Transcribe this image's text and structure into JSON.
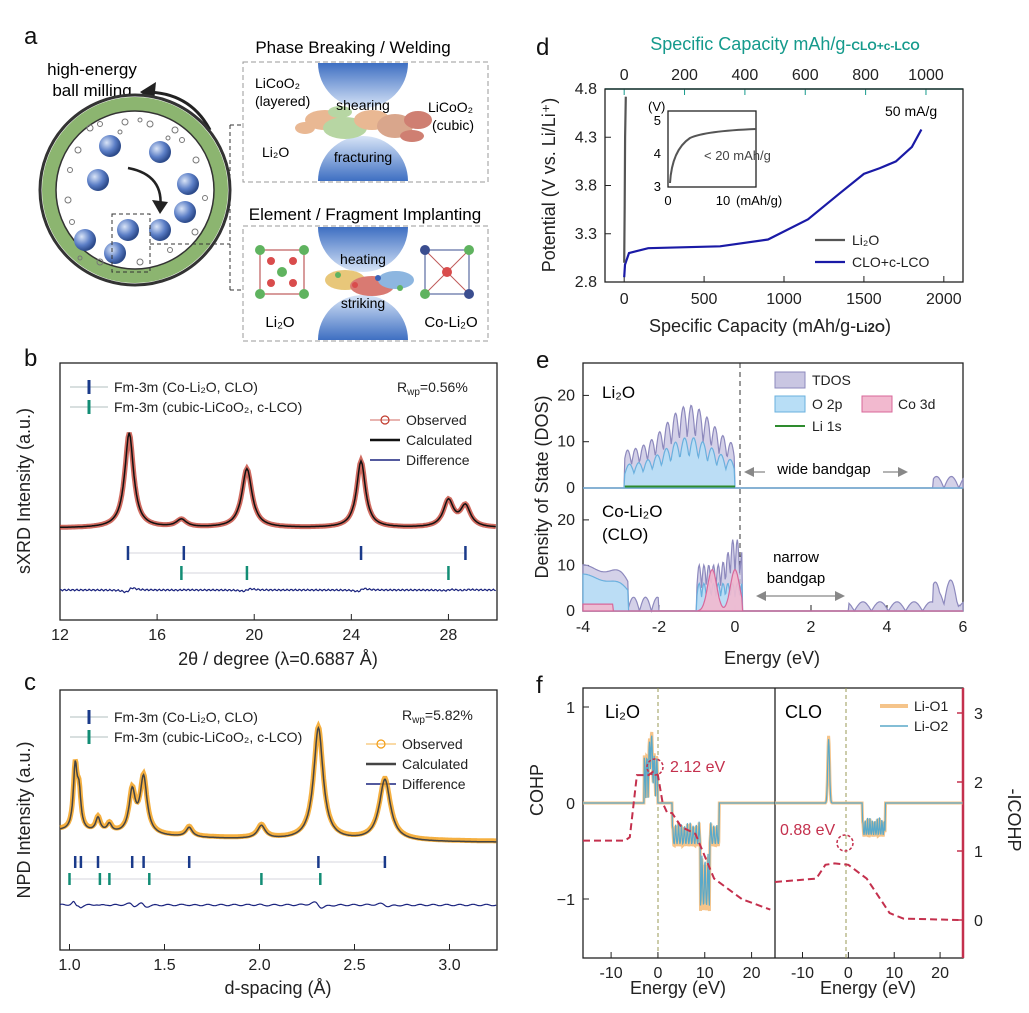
{
  "panels": {
    "a": {
      "label": "a",
      "milling_label_1": "high-energy",
      "milling_label_2": "ball milling",
      "top_title": "Phase Breaking / Welding",
      "bottom_title": "Element / Fragment Implanting",
      "licoo2_layered_1": "LiCoO₂",
      "licoo2_layered_2": "(layered)",
      "licoo2_cubic_1": "LiCoO₂",
      "licoo2_cubic_2": "(cubic)",
      "li2o_top": "Li₂O",
      "shearing": "shearing",
      "fracturing": "fracturing",
      "heating": "heating",
      "striking": "striking",
      "li2o_bottom": "Li₂O",
      "co_li2o": "Co-Li₂O"
    },
    "b": {
      "label": "b",
      "rwp": "R",
      "rwp_sub": "wp",
      "rwp_val": "=0.56%",
      "legend": [
        "Fm-3m (Co-Li₂O, CLO)",
        "Fm-3m (cubic-LiCoO₂, c-LCO)",
        "Observed",
        "Calculated",
        "Difference"
      ],
      "xlabel": "2θ / degree (λ=0.6887 Å)",
      "ylabel": "sXRD Intensity (a.u.)",
      "xticks": [
        "12",
        "16",
        "20",
        "24",
        "28"
      ]
    },
    "c": {
      "label": "c",
      "rwp": "R",
      "rwp_sub": "wp",
      "rwp_val": "=5.82%",
      "legend": [
        "Fm-3m (Co-Li₂O, CLO)",
        "Fm-3m (cubic-LiCoO₂, c-LCO)",
        "Observed",
        "Calculated",
        "Difference"
      ],
      "xlabel": "d-spacing (Å)",
      "ylabel": "NPD Intensity (a.u.)",
      "xticks": [
        "1.0",
        "1.5",
        "2.0",
        "2.5",
        "3.0"
      ]
    },
    "d": {
      "label": "d",
      "top_axis_label": "Specific Capacity mAh/g-",
      "top_axis_sub": "CLO+c-LCO",
      "bottom_axis_label": "Specific Capacity (mAh/g-",
      "bottom_axis_sub": "Li2O",
      "bottom_axis_end": ")",
      "ylabel": "Potential (V vs. Li/Li⁺)",
      "rate": "50 mA/g",
      "inset_v": "(V)",
      "inset_note": "< 20 mAh/g",
      "inset_x_label": "(mAh/g)",
      "inset_yticks": [
        "3",
        "4",
        "5"
      ],
      "inset_xticks": [
        "0",
        "10"
      ],
      "legend": [
        "Li₂O",
        "CLO+c-LCO"
      ],
      "yticks": [
        "2.8",
        "3.3",
        "3.8",
        "4.3",
        "4.8"
      ],
      "xticks": [
        "0",
        "500",
        "1000",
        "1500",
        "2000"
      ],
      "top_ticks": [
        "0",
        "200",
        "400",
        "600",
        "800",
        "1000"
      ]
    },
    "e": {
      "label": "e",
      "top_title": "Li₂O",
      "bottom_title_1": "Co-Li₂O",
      "bottom_title_2": "(CLO)",
      "wide_gap": "wide bandgap",
      "narrow_gap_1": "narrow",
      "narrow_gap_2": "bandgap",
      "legend": [
        "TDOS",
        "O 2p",
        "Co 3d",
        "Li 1s"
      ],
      "xlabel": "Energy (eV)",
      "ylabel": "Density of State (DOS)",
      "yticks": [
        "0",
        "10",
        "20"
      ],
      "xticks": [
        "-4",
        "-2",
        "0",
        "2",
        "4",
        "6"
      ]
    },
    "f": {
      "label": "f",
      "left_title": "Li₂O",
      "right_title": "CLO",
      "left_energy": "2.12 eV",
      "right_energy": "0.88 eV",
      "legend": [
        "Li-O1",
        "Li-O2"
      ],
      "ylabel_left": "COHP",
      "ylabel_right": "-ICOHP",
      "xlabel_left": "Energy (eV)",
      "xlabel_right": "Energy (eV)",
      "yticks_left": [
        "1",
        "0",
        "−1"
      ],
      "yticks_right": [
        "3",
        "2",
        "1",
        "0"
      ],
      "xticks_left": [
        "-10",
        "0",
        "10",
        "20"
      ],
      "xticks_right": [
        "-10",
        "0",
        "10",
        "20"
      ]
    }
  },
  "colors": {
    "observed_b": "#c0392b",
    "observed_c": "#f39c12",
    "calculated": "#111111",
    "difference": "#1a237e",
    "clo_tick": "#1a3a8a",
    "clco_tick": "#138d75",
    "d_top_axis": "#159a8c",
    "d_curve": "#1a1aa6",
    "tdos": "#a9a6cf",
    "o2p": "#9fd0ef",
    "co3d": "#e889b0",
    "li1s": "#2e8b2e",
    "icohp": "#c4304d"
  }
}
